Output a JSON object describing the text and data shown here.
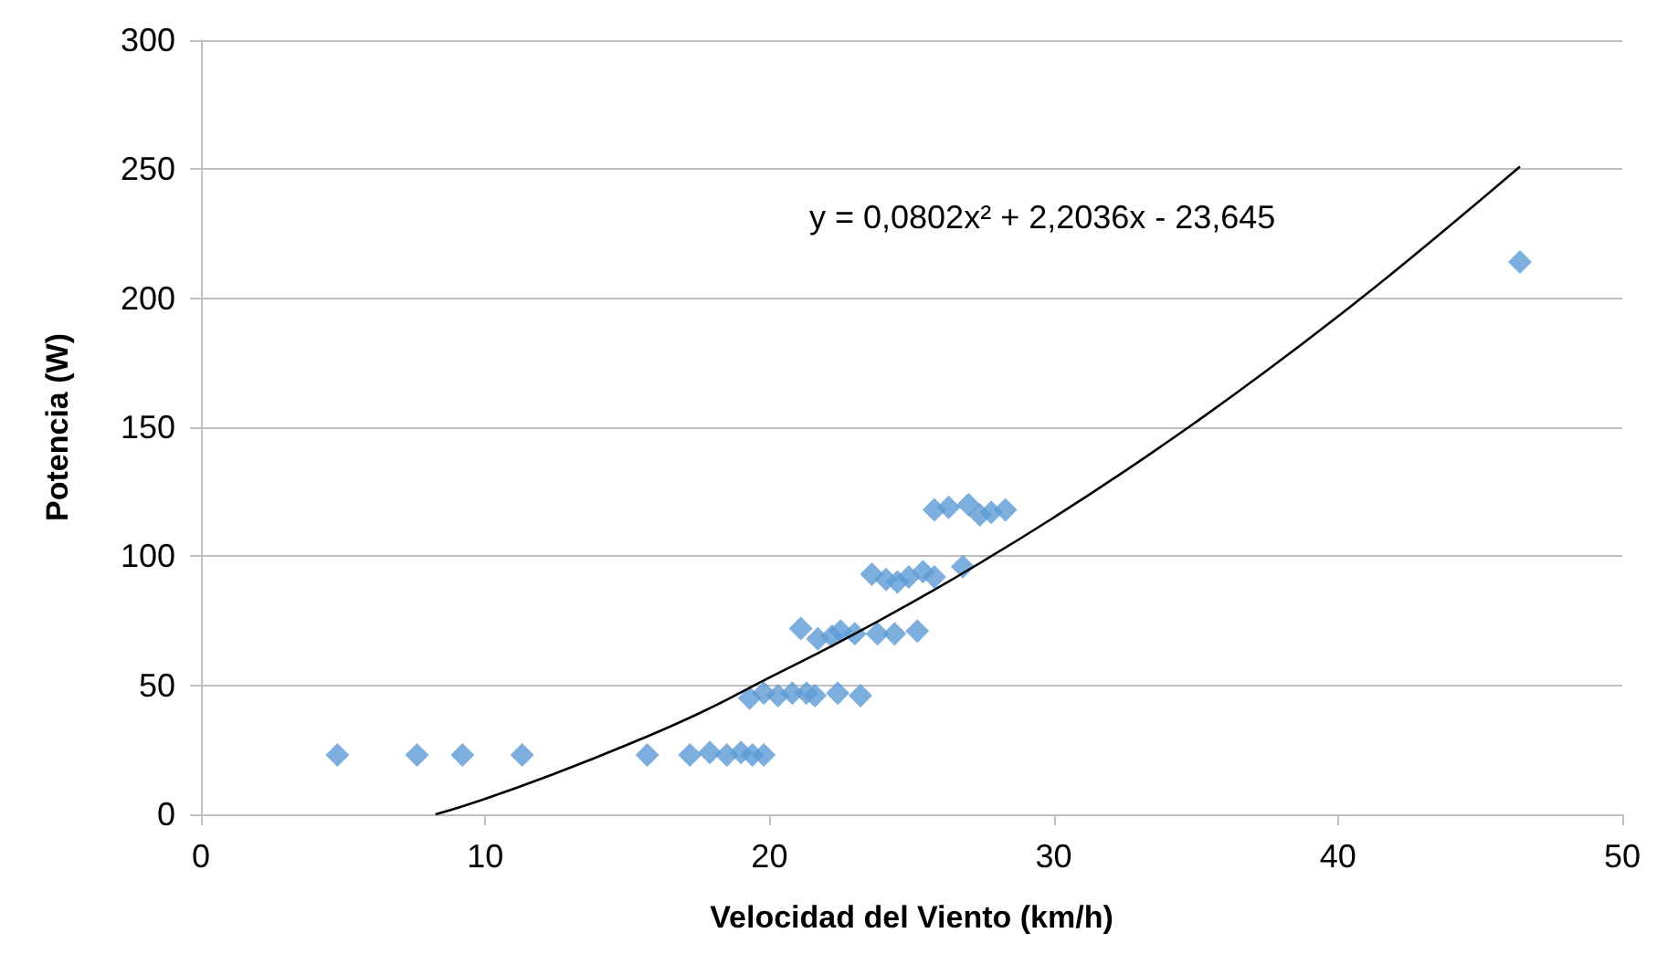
{
  "chart_data": {
    "type": "scatter",
    "xlabel": "Velocidad del Viento (km/h)",
    "ylabel": "Potencia (W)",
    "annotations": [
      "y = 0,0802x² + 2,2036x - 23,645"
    ],
    "xlim": [
      0,
      50
    ],
    "xticks": [
      0,
      10,
      20,
      30,
      40,
      50
    ],
    "ylim": [
      0,
      300
    ],
    "yticks": [
      0,
      50,
      100,
      150,
      200,
      250,
      300
    ],
    "grid": "y",
    "marker": "diamond",
    "series": [
      {
        "color": "#5b9bd5",
        "x": [
          4.8,
          7.6,
          9.2,
          11.3,
          15.7,
          17.2,
          17.9,
          18.5,
          19.0,
          19.4,
          19.8,
          19.3,
          19.8,
          20.3,
          20.8,
          21.3,
          21.6,
          22.4,
          23.2,
          21.1,
          21.7,
          22.2,
          22.5,
          23.0,
          23.8,
          24.4,
          25.2,
          23.6,
          24.1,
          24.5,
          24.9,
          25.4,
          25.8,
          26.8,
          25.8,
          26.3,
          27.0,
          27.4,
          27.8,
          28.3,
          46.4
        ],
        "values": [
          23,
          23,
          23,
          23,
          23,
          23,
          24,
          23,
          24,
          23,
          23,
          45,
          47,
          46,
          47,
          47,
          46,
          47,
          46,
          72,
          68,
          69,
          71,
          70,
          70,
          70,
          71,
          93,
          91,
          90,
          92,
          94,
          92,
          96,
          118,
          119,
          120,
          116,
          117,
          118,
          214
        ]
      },
      {
        "type": "line",
        "color": "#000000",
        "marker": "none",
        "x": [
          8.25,
          10,
          12.5,
          15,
          17.5,
          20,
          22.5,
          25,
          27.5,
          30,
          32.5,
          35,
          37.5,
          40,
          42.5,
          46.4
        ],
        "values": [
          0,
          6,
          16,
          27,
          39,
          53,
          67,
          82,
          98,
          115,
          133,
          152,
          172,
          193,
          215,
          251
        ]
      }
    ]
  }
}
